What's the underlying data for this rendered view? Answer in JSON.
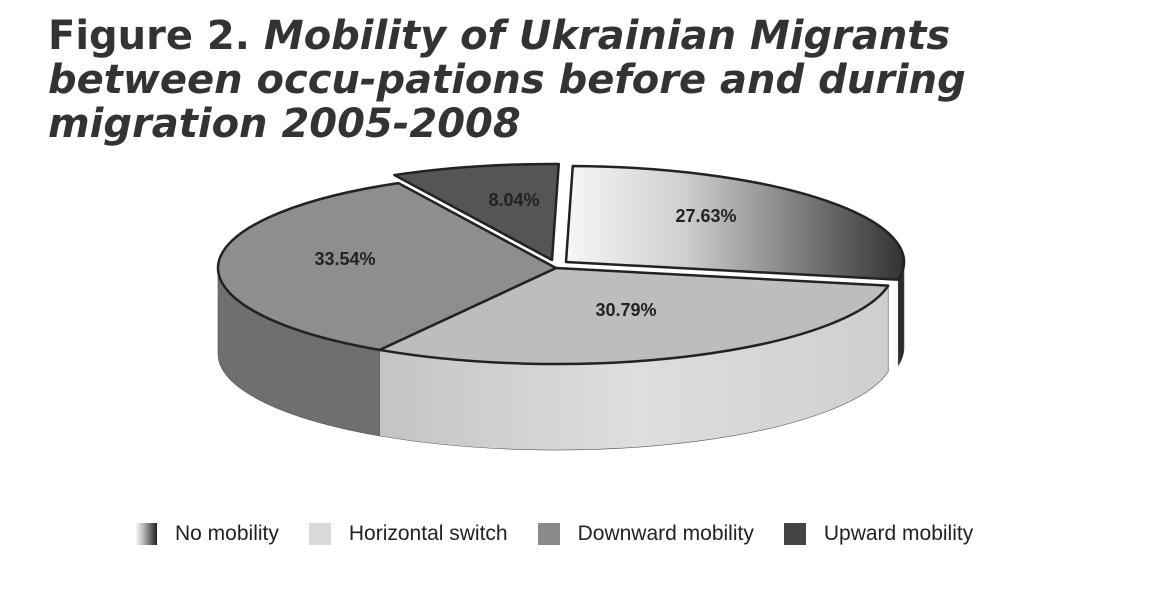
{
  "figure": {
    "title_lead": "Figure 2.",
    "title_rest": "Mobility of Ukrainian Migrants between occu-pations before and during migration 2005-2008"
  },
  "chart_data": {
    "type": "pie",
    "title": "Figure 2. Mobility of Ukrainian Migrants between occupations before and during migration 2005-2008",
    "legend_position": "bottom",
    "slices": [
      {
        "name": "No mobility",
        "value": 27.63,
        "label": "27.63%",
        "color_top_light": "#f5f5f5",
        "color_top_dark": "#3a3a3a",
        "color_side": "#2a2a2a"
      },
      {
        "name": "Horizontal switch",
        "value": 30.79,
        "label": "30.79%",
        "color_top_light": "#bdbdbd",
        "color_top_dark": "#bdbdbd",
        "color_side": "#d6d6d6"
      },
      {
        "name": "Downward mobility",
        "value": 33.54,
        "label": "33.54%",
        "color_top_light": "#8e8e8e",
        "color_top_dark": "#8e8e8e",
        "color_side": "#6f6f6f"
      },
      {
        "name": "Upward mobility",
        "value": 8.04,
        "label": "8.04%",
        "color_top_light": "#555555",
        "color_top_dark": "#555555",
        "color_side": "#3a3a3a"
      }
    ],
    "legend": [
      {
        "label": "No mobility",
        "swatch": "gradient-dark"
      },
      {
        "label": "Horizontal switch",
        "swatch": "#d9d9d9"
      },
      {
        "label": "Downward mobility",
        "swatch": "#8a8a8a"
      },
      {
        "label": "Upward mobility",
        "swatch": "#444444"
      }
    ]
  }
}
